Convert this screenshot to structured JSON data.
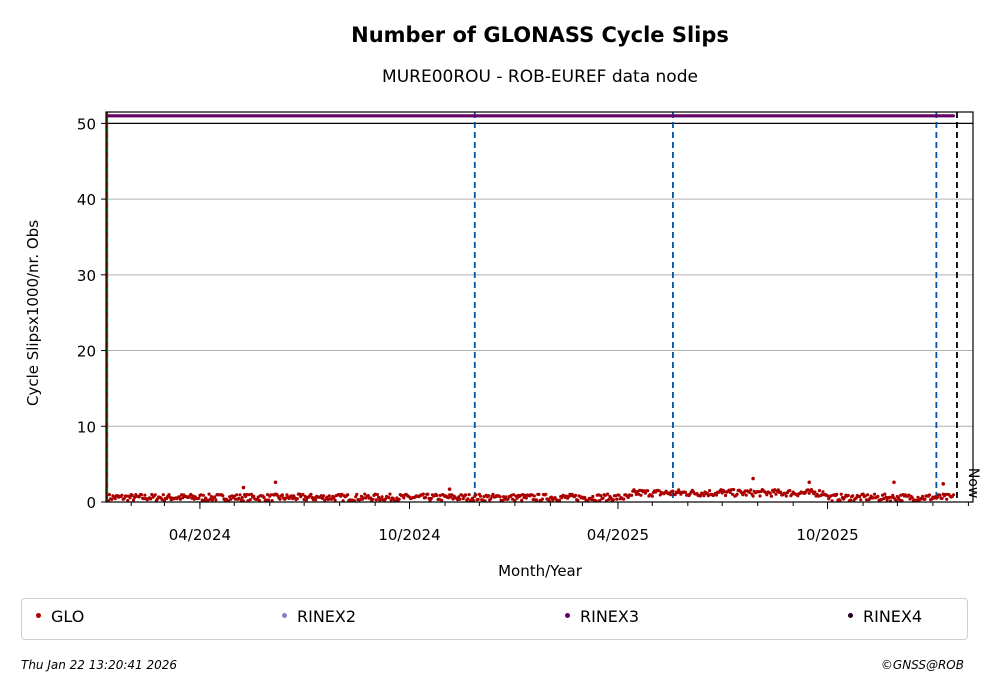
{
  "chart_data": {
    "type": "scatter",
    "title": "Number of GLONASS Cycle Slips",
    "subtitle": "MURE00ROU - ROB-EUREF data node",
    "xlabel": "Month/Year",
    "ylabel": "Cycle Slipsx1000/nr. Obs",
    "xlim": [
      "2024-01-10",
      "2026-02-05"
    ],
    "ylim": [
      0,
      51.5
    ],
    "yticks": [
      0,
      10,
      20,
      30,
      40,
      50
    ],
    "xticks": [
      {
        "date": "2024-04-01",
        "label": "04/2024"
      },
      {
        "date": "2024-10-01",
        "label": "10/2024"
      },
      {
        "date": "2025-04-01",
        "label": "04/2025"
      },
      {
        "date": "2025-10-01",
        "label": "10/2025"
      }
    ],
    "grid": "horizontal",
    "cap_line": 50,
    "vertical_markers": [
      {
        "date": "2024-01-11",
        "color": "#008000",
        "style": "solid"
      },
      {
        "date": "2024-01-11",
        "color": "#cc0000",
        "style": "dashed"
      },
      {
        "date": "2024-11-27",
        "color": "#0055a4",
        "style": "dashed"
      },
      {
        "date": "2025-05-19",
        "color": "#0055a4",
        "style": "dashed"
      },
      {
        "date": "2026-01-04",
        "color": "#0055a4",
        "style": "dashed"
      },
      {
        "date": "2026-01-22",
        "color": "#000000",
        "style": "dashed",
        "label": "Now"
      }
    ],
    "series": [
      {
        "name": "GLO",
        "color": "#aa0000",
        "date_range": [
          "2024-01-12",
          "2026-01-19"
        ],
        "typical_value": 0.6,
        "points": [
          {
            "date": "2024-05-09",
            "y": 1.9
          },
          {
            "date": "2024-06-06",
            "y": 2.6
          },
          {
            "date": "2024-11-05",
            "y": 1.7
          },
          {
            "date": "2025-06-30",
            "y": 1.6
          },
          {
            "date": "2025-07-28",
            "y": 3.1
          },
          {
            "date": "2025-09-15",
            "y": 2.6
          },
          {
            "date": "2025-11-28",
            "y": 2.6
          },
          {
            "date": "2026-01-10",
            "y": 2.4
          }
        ]
      },
      {
        "name": "RINEX2",
        "color": "#8080c0",
        "points": []
      },
      {
        "name": "RINEX3",
        "color": "#660066",
        "date_range": [
          "2024-01-12",
          "2026-01-19"
        ],
        "value": 51
      },
      {
        "name": "RINEX4",
        "color": "#220022",
        "points": []
      }
    ]
  },
  "footer": {
    "timestamp": "Thu Jan 22 13:20:41 2026",
    "credit": "©GNSS@ROB"
  }
}
